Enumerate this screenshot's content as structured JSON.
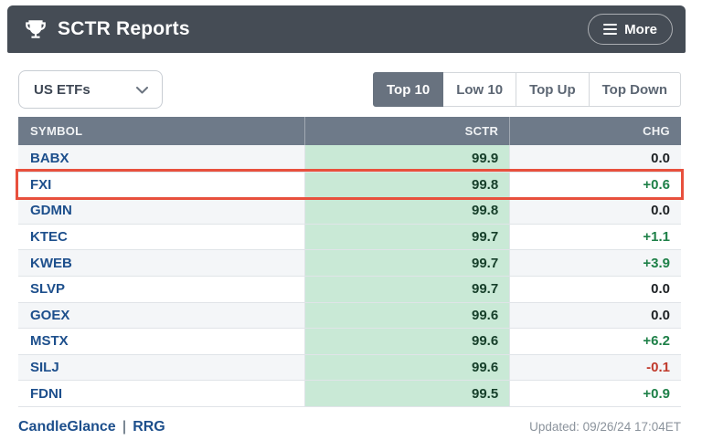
{
  "header": {
    "title": "SCTR Reports",
    "trophy_icon": "trophy-icon",
    "more_label": "More",
    "menu_icon": "hamburger-menu-icon"
  },
  "filter": {
    "selected": "US ETFs",
    "chevron_icon": "chevron-down-icon"
  },
  "tabs": [
    {
      "label": "Top 10",
      "active": true
    },
    {
      "label": "Low 10",
      "active": false
    },
    {
      "label": "Top Up",
      "active": false
    },
    {
      "label": "Top Down",
      "active": false
    }
  ],
  "table": {
    "columns": [
      "SYMBOL",
      "SCTR",
      "CHG"
    ],
    "rows": [
      {
        "symbol": "BABX",
        "sctr": "99.9",
        "chg": "0.0",
        "chg_type": "zero",
        "highlighted": false
      },
      {
        "symbol": "FXI",
        "sctr": "99.8",
        "chg": "+0.6",
        "chg_type": "positive",
        "highlighted": true
      },
      {
        "symbol": "GDMN",
        "sctr": "99.8",
        "chg": "0.0",
        "chg_type": "zero",
        "highlighted": false
      },
      {
        "symbol": "KTEC",
        "sctr": "99.7",
        "chg": "+1.1",
        "chg_type": "positive",
        "highlighted": false
      },
      {
        "symbol": "KWEB",
        "sctr": "99.7",
        "chg": "+3.9",
        "chg_type": "positive",
        "highlighted": false
      },
      {
        "symbol": "SLVP",
        "sctr": "99.7",
        "chg": "0.0",
        "chg_type": "zero",
        "highlighted": false
      },
      {
        "symbol": "GOEX",
        "sctr": "99.6",
        "chg": "0.0",
        "chg_type": "zero",
        "highlighted": false
      },
      {
        "symbol": "MSTX",
        "sctr": "99.6",
        "chg": "+6.2",
        "chg_type": "positive",
        "highlighted": false
      },
      {
        "symbol": "SILJ",
        "sctr": "99.6",
        "chg": "-0.1",
        "chg_type": "negative",
        "highlighted": false
      },
      {
        "symbol": "FDNI",
        "sctr": "99.5",
        "chg": "+0.9",
        "chg_type": "positive",
        "highlighted": false
      }
    ]
  },
  "footer": {
    "links": [
      "CandleGlance",
      "RRG"
    ],
    "separator": "|",
    "updated": "Updated: 09/26/24 17:04ET"
  },
  "colors": {
    "topbar_bg": "#454c55",
    "table_header_bg": "#6e7a89",
    "sctr_cell_bg": "#c9e9d6",
    "sctr_value": "#163f2a",
    "symbol_link": "#1d4f8c",
    "positive": "#1e8048",
    "negative": "#c0392b",
    "zero_change": "#1d2124",
    "highlight_box": "#e8503d",
    "active_tab_bg": "#68727f",
    "stripe_row": "#f4f6f8",
    "updated_text": "#8b939c"
  }
}
